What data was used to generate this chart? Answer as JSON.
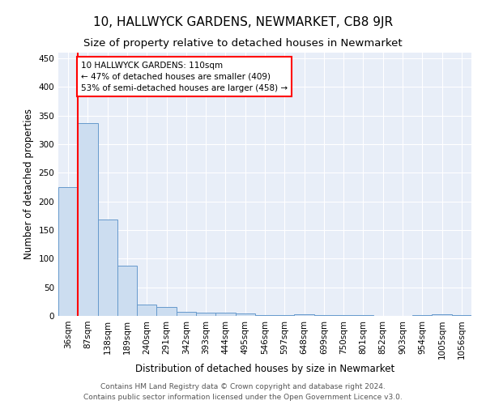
{
  "title": "10, HALLWYCK GARDENS, NEWMARKET, CB8 9JR",
  "subtitle": "Size of property relative to detached houses in Newmarket",
  "xlabel": "Distribution of detached houses by size in Newmarket",
  "ylabel": "Number of detached properties",
  "categories": [
    "36sqm",
    "87sqm",
    "138sqm",
    "189sqm",
    "240sqm",
    "291sqm",
    "342sqm",
    "393sqm",
    "444sqm",
    "495sqm",
    "546sqm",
    "597sqm",
    "648sqm",
    "699sqm",
    "750sqm",
    "801sqm",
    "852sqm",
    "903sqm",
    "954sqm",
    "1005sqm",
    "1056sqm"
  ],
  "values": [
    225,
    337,
    168,
    88,
    20,
    15,
    7,
    6,
    5,
    4,
    2,
    1,
    3,
    1,
    1,
    1,
    0,
    0,
    1,
    3,
    1
  ],
  "bar_color": "#ccddf0",
  "bar_edge_color": "#6699cc",
  "vline_x_index": 1,
  "annotation_text": "10 HALLWYCK GARDENS: 110sqm\n← 47% of detached houses are smaller (409)\n53% of semi-detached houses are larger (458) →",
  "annotation_box_color": "white",
  "annotation_box_edge_color": "red",
  "vline_color": "red",
  "ylim": [
    0,
    460
  ],
  "yticks": [
    0,
    50,
    100,
    150,
    200,
    250,
    300,
    350,
    400,
    450
  ],
  "footer_line1": "Contains HM Land Registry data © Crown copyright and database right 2024.",
  "footer_line2": "Contains public sector information licensed under the Open Government Licence v3.0.",
  "background_color": "#e8eef8",
  "grid_color": "white",
  "title_fontsize": 11,
  "subtitle_fontsize": 9.5,
  "axis_label_fontsize": 8.5,
  "tick_fontsize": 7.5,
  "annotation_fontsize": 7.5,
  "footer_fontsize": 6.5,
  "fig_width": 6.0,
  "fig_height": 5.0,
  "dpi": 100
}
